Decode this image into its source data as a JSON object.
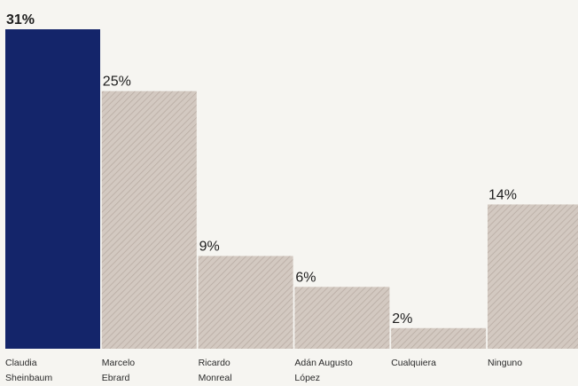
{
  "chart_data": {
    "type": "bar",
    "categories": [
      [
        "Claudia",
        "Sheinbaum"
      ],
      [
        "Marcelo",
        "Ebrard"
      ],
      [
        "Ricardo",
        "Monreal"
      ],
      [
        "Adán Augusto",
        "López"
      ],
      [
        "Cualquiera"
      ],
      [
        "Ninguno"
      ]
    ],
    "values": [
      31,
      25,
      9,
      6,
      2,
      14
    ],
    "value_labels": [
      "31%",
      "25%",
      "9%",
      "6%",
      "2%",
      "14%"
    ],
    "highlight_index": 0,
    "ylim": [
      0,
      31
    ],
    "grid": false,
    "legend": "none",
    "colors": {
      "highlight": "#14256a",
      "bar": "#d3c9c1",
      "bar_hatch": "#b8aca3",
      "background": "#f6f5f1"
    }
  }
}
